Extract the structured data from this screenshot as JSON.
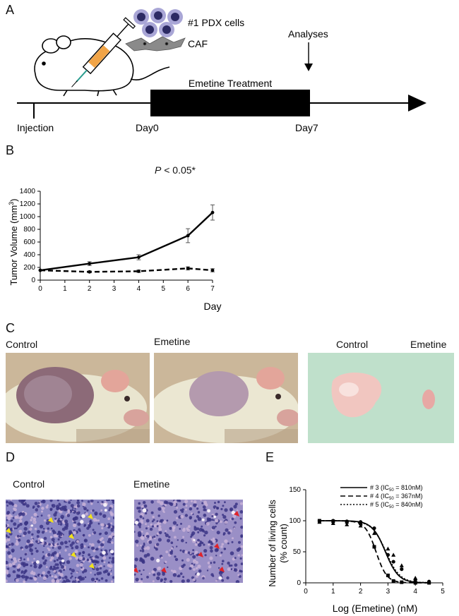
{
  "panels": {
    "a": "A",
    "b": "B",
    "c": "C",
    "d": "D",
    "e": "E"
  },
  "panel_a": {
    "pdx_label": "#1 PDX cells",
    "caf_label": "CAF",
    "analyses_label": "Analyses",
    "treatment_label": "Emetine Treatment",
    "timeline_labels": [
      "Injection",
      "Day0",
      "Day7"
    ]
  },
  "panel_b": {
    "p_value_prefix": "P",
    "p_value_rest": " < 0.05*",
    "chart_data": {
      "type": "line",
      "title": "",
      "xlabel": "Day",
      "ylabel": "Tumor Volume (mm³)",
      "ylabel_parts": [
        "Tumor Volume (mm",
        "3",
        ")"
      ],
      "x": [
        0,
        2,
        4,
        6,
        7
      ],
      "x_ticks": [
        "0",
        "1",
        "2",
        "3",
        "4",
        "5",
        "6",
        "7"
      ],
      "x_tick_values": [
        0,
        1,
        2,
        3,
        4,
        5,
        6,
        7
      ],
      "y_ticks": [
        "0",
        "200",
        "400",
        "600",
        "800",
        "1000",
        "1200",
        "1400"
      ],
      "xlim": [
        0,
        7
      ],
      "ylim": [
        0,
        1400
      ],
      "series": [
        {
          "style": "solid",
          "values": [
            155,
            260,
            360,
            700,
            1065
          ],
          "errors": [
            0,
            30,
            40,
            110,
            120
          ]
        },
        {
          "style": "dashed",
          "values": [
            155,
            130,
            140,
            185,
            155
          ],
          "errors": [
            0,
            15,
            20,
            25,
            25
          ]
        }
      ]
    }
  },
  "panel_c": {
    "control_label": "Control",
    "emetine_label": "Emetine",
    "excised_control_label": "Control",
    "excised_emetine_label": "Emetine"
  },
  "panel_d": {
    "control_label": "Control",
    "emetine_label": "Emetine"
  },
  "panel_e": {
    "chart_data": {
      "type": "line",
      "title": "",
      "xlabel": "Log (Emetine) (nM)",
      "ylabel_lines": [
        "Number of living cells",
        "(% count)"
      ],
      "x_ticks": [
        "0",
        "1",
        "2",
        "3",
        "4",
        "5"
      ],
      "y_ticks": [
        "0",
        "50",
        "100",
        "150"
      ],
      "xlim": [
        0,
        5
      ],
      "ylim": [
        0,
        150
      ],
      "legend_position": "top-right",
      "series": [
        {
          "name": "# 3 (IC50 = 810nM)",
          "legend": [
            "# 3 (IC",
            "50",
            " = 810nM)"
          ],
          "style": "solid",
          "marker": "circle",
          "log_ic50": 2.908,
          "top": 100,
          "bottom": 0,
          "hill": 1.8,
          "points": [
            [
              0.5,
              100
            ],
            [
              1,
              100
            ],
            [
              1.5,
              99
            ],
            [
              2,
              98
            ],
            [
              2.5,
              88
            ],
            [
              3,
              45
            ],
            [
              3.2,
              34
            ],
            [
              3.5,
              22
            ],
            [
              4,
              5
            ],
            [
              4.5,
              2
            ]
          ]
        },
        {
          "name": "# 4 (IC50 = 367nM)",
          "legend": [
            "# 4 (IC",
            "50",
            " = 367nM)"
          ],
          "style": "dashed",
          "marker": "square",
          "log_ic50": 2.565,
          "top": 100,
          "bottom": 0,
          "hill": 2.2,
          "points": [
            [
              0.5,
              100
            ],
            [
              1,
              99
            ],
            [
              1.5,
              98
            ],
            [
              2,
              96
            ],
            [
              2.5,
              58
            ],
            [
              3,
              12
            ],
            [
              3.2,
              3
            ],
            [
              3.5,
              1
            ],
            [
              4,
              0
            ],
            [
              4.5,
              0
            ]
          ]
        },
        {
          "name": "# 5 (IC50 = 840nM)",
          "legend": [
            "# 5 (IC",
            "50",
            " = 840nM)"
          ],
          "style": "dotted",
          "marker": "triangle",
          "log_ic50": 2.924,
          "top": 100,
          "bottom": 0,
          "hill": 1.7,
          "points": [
            [
              0.5,
              98
            ],
            [
              1,
              96
            ],
            [
              1.5,
              94
            ],
            [
              2,
              92
            ],
            [
              2.5,
              80
            ],
            [
              3,
              55
            ],
            [
              3.2,
              45
            ],
            [
              3.5,
              28
            ],
            [
              4,
              8
            ],
            [
              4.5,
              2
            ]
          ]
        }
      ]
    }
  }
}
